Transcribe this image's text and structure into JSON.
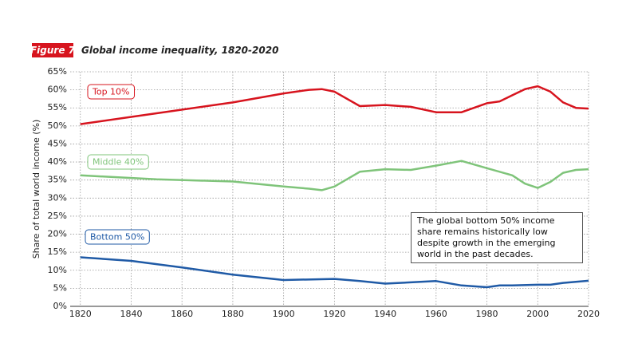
{
  "chart_data": {
    "type": "line",
    "figure_label": "Figure 7",
    "title": "Global income inequality, 1820-2020",
    "y_label": "Share of total world income (%)",
    "annotation": "The global bottom 50% income share remains historically low despite growth in the emerging world in the past decades.",
    "xlim": [
      1816,
      2020
    ],
    "xticks": [
      1820,
      1840,
      1860,
      1880,
      1900,
      1920,
      1940,
      1960,
      1980,
      2000,
      2020
    ],
    "ylim": [
      0,
      65
    ],
    "yticks": [
      {
        "value": 0,
        "label": "0%"
      },
      {
        "value": 5,
        "label": "5%"
      },
      {
        "value": 10,
        "label": "10%"
      },
      {
        "value": 15,
        "label": "15%"
      },
      {
        "value": 20,
        "label": "20%"
      },
      {
        "value": 25,
        "label": "25%"
      },
      {
        "value": 30,
        "label": "30%"
      },
      {
        "value": 35,
        "label": "35%"
      },
      {
        "value": 40,
        "label": "40%"
      },
      {
        "value": 45,
        "label": "45%"
      },
      {
        "value": 50,
        "label": "50%"
      },
      {
        "value": 55,
        "label": "55%"
      },
      {
        "value": 60,
        "label": "60%"
      },
      {
        "value": 65,
        "label": "65%"
      }
    ],
    "grid": true,
    "series": [
      {
        "name": "Top 10%",
        "color": "#d7141e",
        "x": [
          1820,
          1850,
          1880,
          1900,
          1910,
          1915,
          1920,
          1930,
          1940,
          1950,
          1960,
          1970,
          1980,
          1985,
          1990,
          1995,
          2000,
          2005,
          2010,
          2015,
          2020
        ],
        "values": [
          50.5,
          53.5,
          56.5,
          59,
          60,
          60.2,
          59.5,
          55.5,
          55.8,
          55.3,
          53.8,
          53.8,
          56.3,
          56.8,
          58.5,
          60.2,
          61,
          59.5,
          56.5,
          55,
          54.8
        ]
      },
      {
        "name": "Middle 40%",
        "color": "#7fc47a",
        "x": [
          1820,
          1850,
          1880,
          1900,
          1910,
          1915,
          1920,
          1930,
          1940,
          1950,
          1960,
          1970,
          1980,
          1990,
          1995,
          2000,
          2005,
          2010,
          2015,
          2020
        ],
        "values": [
          36.3,
          35.2,
          34.6,
          33.2,
          32.6,
          32.2,
          33.2,
          37.3,
          38,
          37.8,
          39,
          40.3,
          38.3,
          36.3,
          34,
          32.8,
          34.5,
          37,
          37.8,
          38
        ]
      },
      {
        "name": "Bottom 50%",
        "color": "#1f5aa6",
        "x": [
          1820,
          1840,
          1860,
          1880,
          1900,
          1920,
          1930,
          1940,
          1960,
          1970,
          1980,
          1985,
          1990,
          2000,
          2005,
          2010,
          2020
        ],
        "values": [
          13.6,
          12.6,
          10.8,
          8.8,
          7.3,
          7.6,
          7,
          6.3,
          7,
          5.8,
          5.3,
          5.8,
          5.8,
          6,
          6,
          6.5,
          7.1
        ]
      }
    ]
  }
}
